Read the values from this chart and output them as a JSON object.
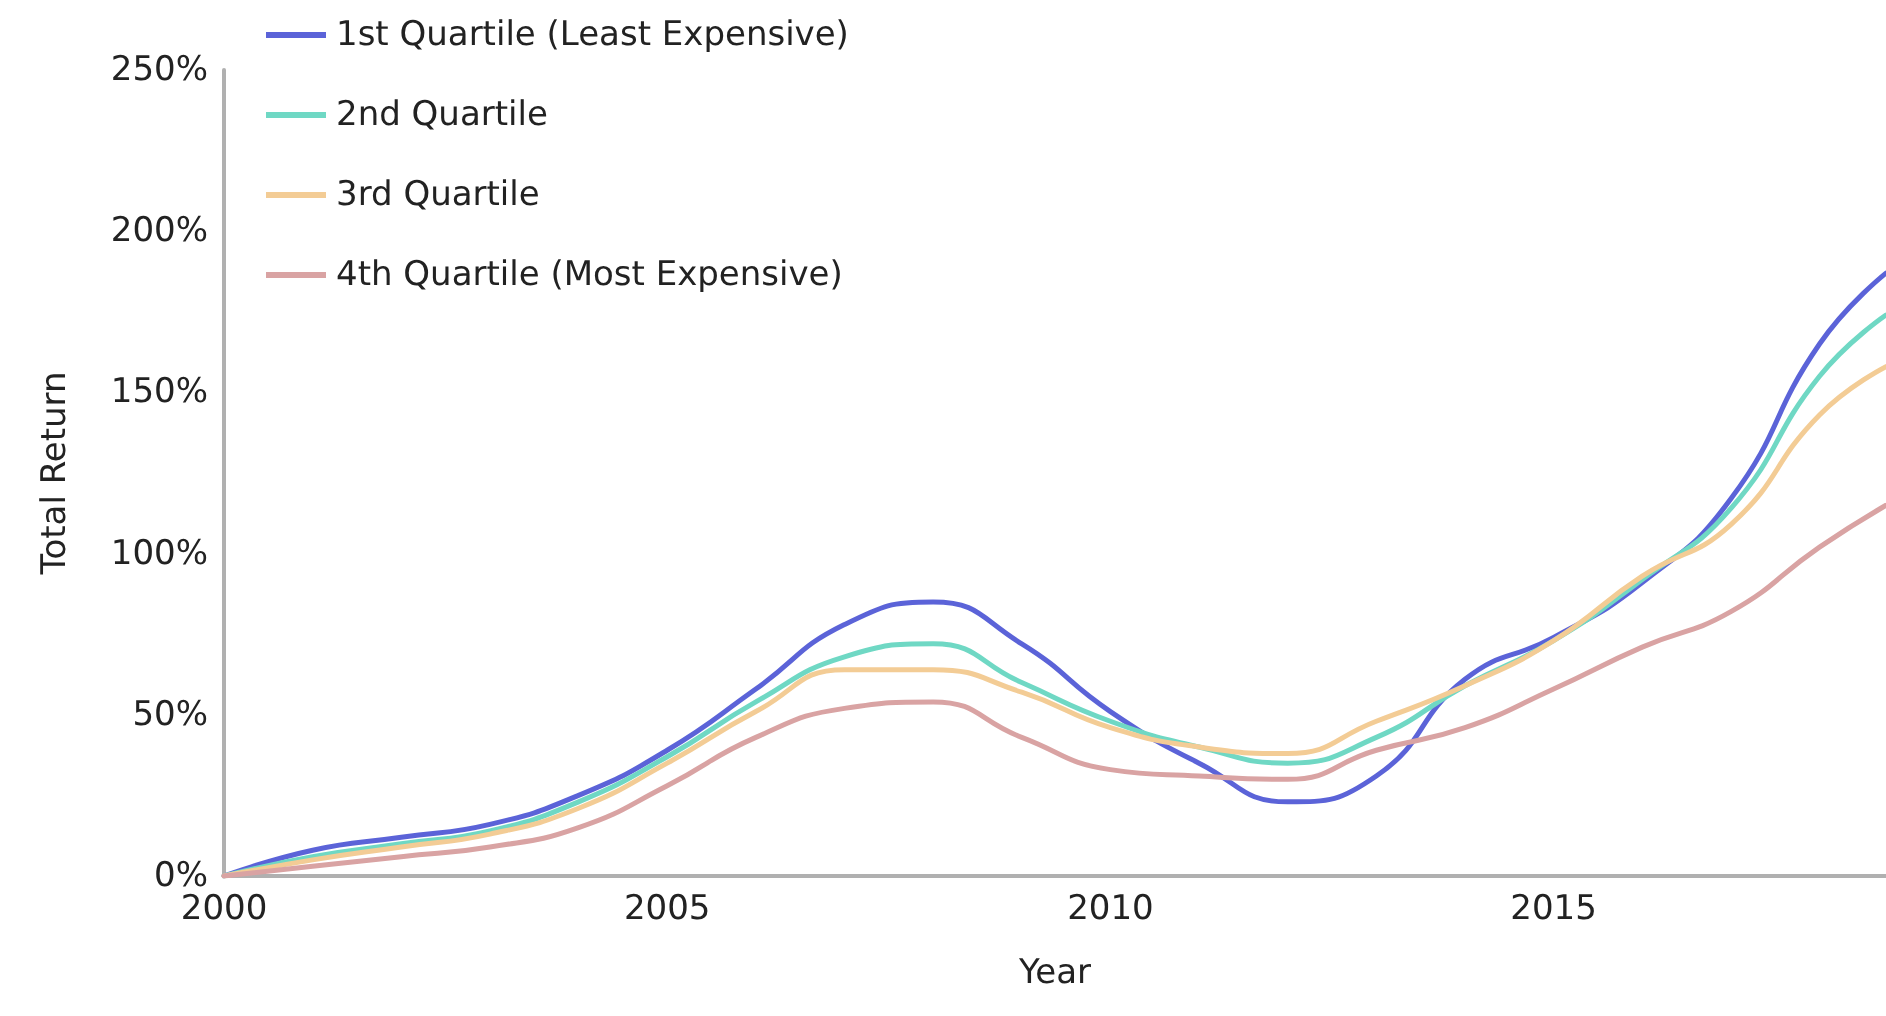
{
  "chart_data": {
    "type": "line",
    "xlabel": "Year",
    "ylabel": "Total Return",
    "x": [
      2000,
      2001,
      2002,
      2003,
      2004,
      2005,
      2006,
      2007,
      2008,
      2009,
      2010,
      2011,
      2012,
      2013,
      2014,
      2015,
      2016,
      2017,
      2018,
      2018.75
    ],
    "series": [
      {
        "name": "1st Quartile (Least Expensive)",
        "color": "#5b63d8",
        "values": [
          0,
          8,
          12,
          16,
          25,
          39,
          58,
          78,
          85,
          72,
          51,
          35,
          23,
          31,
          61,
          74,
          91,
          117,
          165,
          187
        ]
      },
      {
        "name": "2nd Quartile",
        "color": "#6fd8c4",
        "values": [
          0,
          6,
          10,
          14,
          23,
          37,
          54,
          68,
          72,
          60,
          48,
          40,
          35,
          43,
          59,
          73,
          92,
          114,
          155,
          174
        ]
      },
      {
        "name": "3rd Quartile",
        "color": "#f3cc95",
        "values": [
          0,
          5,
          9,
          13,
          21,
          35,
          51,
          64,
          64,
          57,
          46,
          40,
          38,
          48,
          59,
          73,
          93,
          109,
          143,
          158
        ]
      },
      {
        "name": "4th Quartile (Most Expensive)",
        "color": "#d9a3a3",
        "values": [
          0,
          3,
          6,
          9,
          15,
          28,
          43,
          52,
          54,
          43,
          33,
          31,
          30,
          39,
          46,
          58,
          71,
          82,
          102,
          115
        ]
      }
    ],
    "xlim": [
      2000,
      2018.75
    ],
    "xticks": [
      2000,
      2005,
      2010,
      2015
    ],
    "ylim": [
      0,
      250
    ],
    "yticks": [
      {
        "value": 0,
        "label": "0%"
      },
      {
        "value": 50,
        "label": "50%"
      },
      {
        "value": 100,
        "label": "100%"
      },
      {
        "value": 150,
        "label": "150%"
      },
      {
        "value": 200,
        "label": "200%"
      },
      {
        "value": 250,
        "label": "250%"
      }
    ],
    "grid": false,
    "legend": "top left",
    "marker": "none",
    "line_style": "solid"
  }
}
